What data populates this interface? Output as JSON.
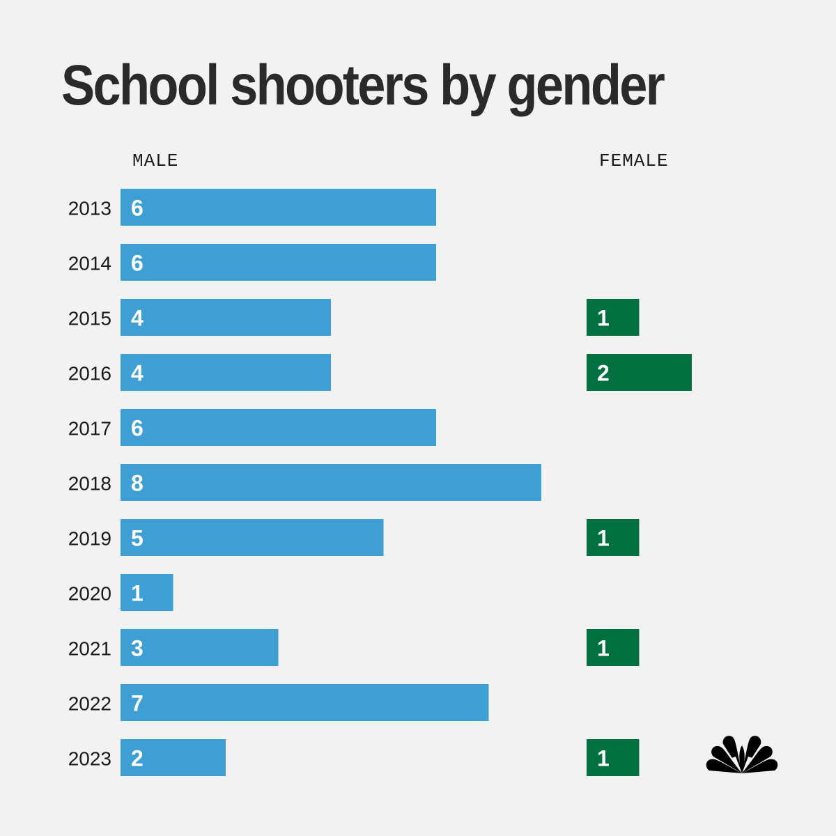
{
  "chart_data": {
    "type": "bar",
    "title": "School shooters by gender",
    "categories": [
      "2013",
      "2014",
      "2015",
      "2016",
      "2017",
      "2018",
      "2019",
      "2020",
      "2021",
      "2022",
      "2023"
    ],
    "series": [
      {
        "name": "MALE",
        "color": "#3d9fd3",
        "values": [
          6,
          6,
          4,
          4,
          6,
          8,
          5,
          1,
          3,
          7,
          2
        ]
      },
      {
        "name": "FEMALE",
        "color": "#007041",
        "values": [
          0,
          0,
          1,
          2,
          0,
          0,
          1,
          0,
          1,
          0,
          1
        ]
      }
    ],
    "xlabel": "",
    "ylabel": "",
    "grid": false,
    "legend": "column headers above bars"
  },
  "logo": {
    "icon": "nbc-peacock-icon"
  }
}
